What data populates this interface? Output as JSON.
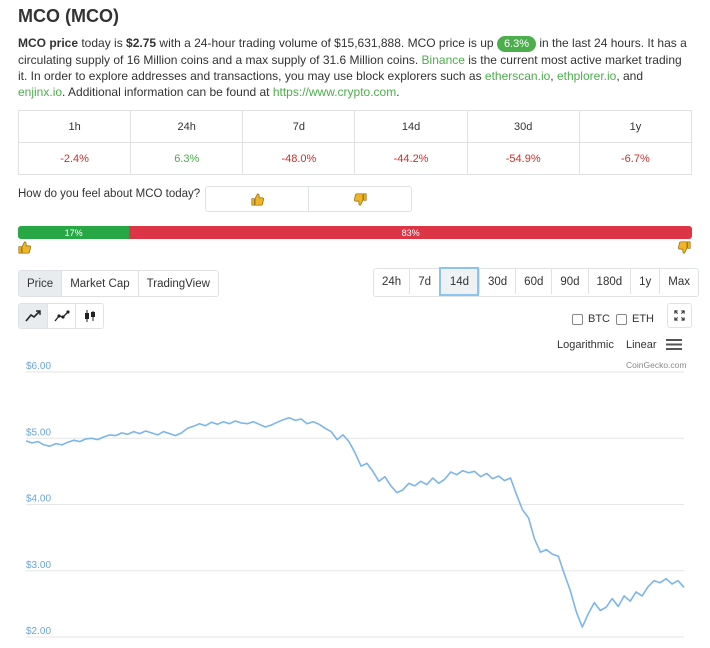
{
  "page": {
    "title": "MCO (MCO)"
  },
  "description": {
    "s1_bold": "MCO price",
    "s1_text": " today is ",
    "price": "$2.75",
    "s2": " with a 24-hour trading volume of $15,631,888. MCO price is up ",
    "change_pill": "6.3%",
    "s3": " in the last 24 hours. It has a circulating supply of 16 Million coins and a max supply of 31.6 Million coins. ",
    "link_binance": "Binance",
    "s4": " is the current most active market trading it. In order to explore addresses and transactions, you may use block explorers such as ",
    "link_etherscan": "etherscan.io",
    "s5": ", ",
    "link_ethplorer": "ethplorer.io",
    "s6": ", and ",
    "link_enjinx": "enjinx.io",
    "s7": ". Additional information can be found at ",
    "link_site": "https://www.crypto.com",
    "s8": "."
  },
  "price_change": {
    "headers": [
      "1h",
      "24h",
      "7d",
      "14d",
      "30d",
      "1y"
    ],
    "values": [
      "-2.4%",
      "6.3%",
      "-48.0%",
      "-44.2%",
      "-54.9%",
      "-6.7%"
    ],
    "value_colors": [
      "#c9302c",
      "#4cae4c",
      "#c9302c",
      "#c9302c",
      "#c9302c",
      "#c9302c"
    ]
  },
  "sentiment": {
    "question": "How do you feel about MCO today?",
    "up_icon": "thumbs-up-icon",
    "down_icon": "thumbs-down-icon",
    "up_pct": "17%",
    "down_pct": "83%",
    "up_color": "#28a745",
    "down_color": "#dc3545"
  },
  "chart_tabs": {
    "items": [
      "Price",
      "Market Cap",
      "TradingView"
    ],
    "active": "Price"
  },
  "time_ranges": {
    "items": [
      "24h",
      "7d",
      "14d",
      "30d",
      "60d",
      "90d",
      "180d",
      "1y",
      "Max"
    ],
    "active": "14d"
  },
  "chart_types": [
    "line-chart-icon",
    "point-line-chart-icon",
    "candlestick-icon"
  ],
  "compare": {
    "btc_label": "BTC",
    "eth_label": "ETH"
  },
  "scale": {
    "log_label": "Logarithmic",
    "linear_label": "Linear",
    "menu_icon": "hamburger-menu-icon",
    "expand_icon": "expand-icon"
  },
  "chart_credit": "CoinGecko.com",
  "chart_data": {
    "type": "line",
    "title": "",
    "xlabel": "",
    "ylabel": "",
    "y_tick_labels": [
      "$6.00",
      "$5.00",
      "$4.00",
      "$3.00",
      "$2.00"
    ],
    "y_ticks": [
      6,
      5,
      4,
      3,
      2
    ],
    "ylim": [
      1.9,
      6.1
    ],
    "grid": true,
    "line_color": "#7cb5ec",
    "series": [
      {
        "values": [
          4.96,
          4.93,
          4.95,
          4.9,
          4.88,
          4.92,
          4.9,
          4.94,
          4.97,
          4.95,
          4.99,
          5.0,
          4.98,
          5.02,
          5.05,
          5.04,
          5.08,
          5.06,
          5.1,
          5.07,
          5.11,
          5.08,
          5.05,
          5.1,
          5.07,
          5.04,
          5.08,
          5.15,
          5.18,
          5.22,
          5.19,
          5.24,
          5.21,
          5.25,
          5.22,
          5.26,
          5.23,
          5.22,
          5.25,
          5.21,
          5.17,
          5.2,
          5.24,
          5.28,
          5.31,
          5.27,
          5.29,
          5.22,
          5.25,
          5.21,
          5.15,
          5.1,
          4.98,
          5.05,
          4.95,
          4.78,
          4.58,
          4.62,
          4.5,
          4.35,
          4.42,
          4.28,
          4.18,
          4.22,
          4.32,
          4.28,
          4.35,
          4.3,
          4.4,
          4.32,
          4.38,
          4.49,
          4.45,
          4.51,
          4.48,
          4.5,
          4.42,
          4.47,
          4.39,
          4.43,
          4.36,
          4.4,
          4.15,
          3.92,
          3.8,
          3.48,
          3.28,
          3.32,
          3.25,
          3.22,
          2.95,
          2.7,
          2.38,
          2.15,
          2.35,
          2.52,
          2.4,
          2.45,
          2.58,
          2.46,
          2.62,
          2.54,
          2.68,
          2.62,
          2.76,
          2.85,
          2.82,
          2.88,
          2.8,
          2.85,
          2.75
        ]
      }
    ]
  }
}
